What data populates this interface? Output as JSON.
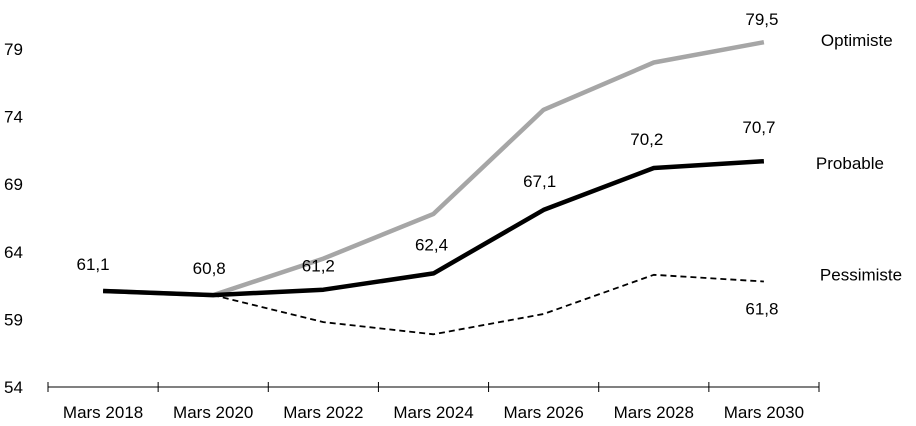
{
  "chart_data": {
    "type": "line",
    "title": "",
    "xlabel": "",
    "ylabel": "",
    "categories": [
      "Mars 2018",
      "Mars 2020",
      "Mars 2022",
      "Mars 2024",
      "Mars 2026",
      "Mars 2028",
      "Mars 2030"
    ],
    "y_ticks": [
      "54",
      "59",
      "64",
      "69",
      "74",
      "79"
    ],
    "ylim": [
      54,
      81
    ],
    "grid": false,
    "legend": "none",
    "series": [
      {
        "name": "Optimiste",
        "color": "#a6a6a6",
        "style": "solid",
        "values": [
          61.1,
          60.8,
          63.5,
          66.8,
          74.5,
          78.0,
          79.5
        ],
        "data_labels": [
          null,
          null,
          null,
          null,
          null,
          null,
          "79,5"
        ]
      },
      {
        "name": "Probable",
        "color": "#000000",
        "style": "solid",
        "values": [
          61.1,
          60.8,
          61.2,
          62.4,
          67.1,
          70.2,
          70.7
        ],
        "data_labels": [
          "61,1",
          "60,8",
          "61,2",
          "62,4",
          "67,1",
          "70,2",
          "70,7"
        ]
      },
      {
        "name": "Pessimiste",
        "color": "#000000",
        "style": "dashed",
        "values": [
          61.1,
          60.8,
          58.8,
          57.9,
          59.4,
          62.3,
          61.8
        ],
        "data_labels": [
          null,
          null,
          null,
          null,
          null,
          null,
          "61,8"
        ]
      }
    ]
  }
}
